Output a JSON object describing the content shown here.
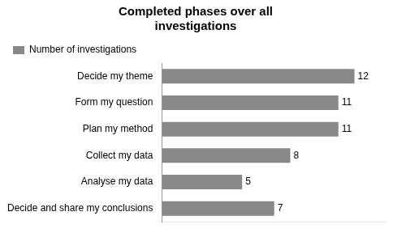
{
  "chart_data": {
    "type": "bar",
    "orientation": "horizontal",
    "title": [
      "Completed phases over all",
      "investigations"
    ],
    "categories": [
      "Decide and share my conclusions",
      "Analyse my data",
      "Collect my data",
      "Plan my method",
      "Form my question",
      "Decide my theme"
    ],
    "series": [
      {
        "name": "Number of investigations",
        "color": "#888888",
        "values": [
          7,
          5,
          8,
          11,
          11,
          12
        ]
      }
    ],
    "xlim": [
      0,
      14
    ],
    "grid": false,
    "legend": "top",
    "data_labels": true,
    "tick_labels": "y"
  }
}
